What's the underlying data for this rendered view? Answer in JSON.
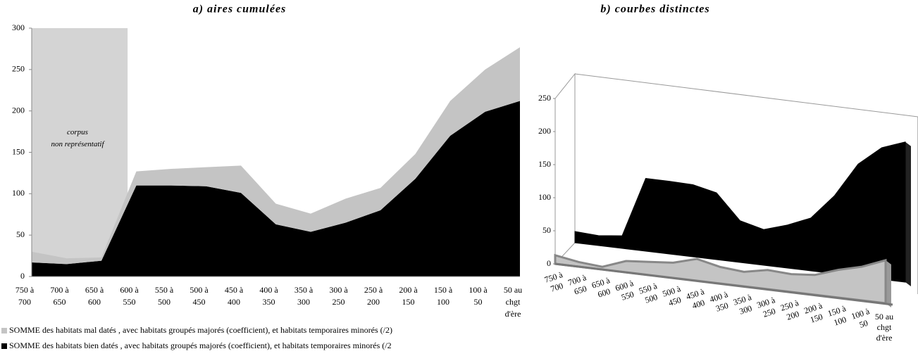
{
  "chart_data": [
    {
      "type": "stacked_area",
      "title": "a) aires cumulées",
      "categories": [
        "750 à\n700",
        "700 à\n650",
        "650 à\n600",
        "600 à\n550",
        "550 à\n500",
        "500 à\n450",
        "450 à\n400",
        "400 à\n350",
        "350 à\n300",
        "300 à\n250",
        "250 à\n200",
        "200 à\n150",
        "150 à\n100",
        "100 à\n50",
        "50 au\nchgt\nd'ère"
      ],
      "series": [
        {
          "name": "SOMME des habitats bien datés , avec habitats groupés majorés  (coefficient), et habitats temporaires minorés  (/2",
          "color": "#000000",
          "values": [
            17,
            15,
            19,
            110,
            110,
            109,
            101,
            63,
            54,
            65,
            80,
            118,
            170,
            199,
            212
          ]
        },
        {
          "name": "SOMME des habitats mal datés , avec habitats groupés majorés  (coefficient), et habitats temporaires minorés  (/2)",
          "color": "#c4c4c4",
          "values": [
            13,
            7,
            4,
            17,
            20,
            23,
            33,
            25,
            22,
            29,
            27,
            30,
            42,
            51,
            65
          ]
        }
      ],
      "legend_order": [
        1,
        0
      ],
      "ylim": [
        0,
        300
      ],
      "yticks": [
        0,
        50,
        100,
        150,
        200,
        250,
        300
      ],
      "annotation": "corpus\nnon représentatif"
    },
    {
      "type": "area_3d",
      "title": "b) courbes distinctes",
      "categories": [
        "750 à\n700",
        "700 à\n650",
        "650 à\n600",
        "600 à\n550",
        "550 à\n500",
        "500 à\n450",
        "450 à\n400",
        "400 à\n350",
        "350 à\n300",
        "300 à\n250",
        "250 à\n200",
        "200 à\n150",
        "150 à\n100",
        "100 à\n50",
        "50 au\nchgt\nd'ère"
      ],
      "series": [
        {
          "color": "#c4c4c4",
          "values": [
            13,
            7,
            4,
            17,
            20,
            23,
            33,
            25,
            22,
            29,
            27,
            30,
            42,
            51,
            65
          ]
        },
        {
          "color": "#000000",
          "values": [
            17,
            15,
            19,
            110,
            110,
            109,
            101,
            63,
            54,
            65,
            80,
            118,
            170,
            199,
            212
          ]
        }
      ],
      "ylim": [
        0,
        250
      ],
      "yticks": [
        0,
        50,
        100,
        150,
        200,
        250
      ]
    }
  ]
}
